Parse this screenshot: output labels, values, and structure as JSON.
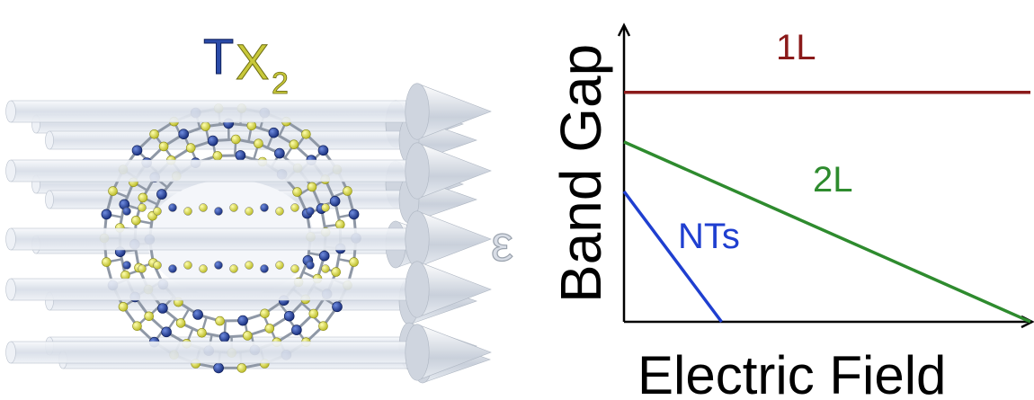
{
  "illustration": {
    "formula_main": "TX",
    "formula_sub": "2",
    "field_symbol": "ε",
    "colors": {
      "transition_metal": "#1f3b9a",
      "chalcogen": "#e3e34a",
      "bond": "#8f98a6",
      "arrow_shaft": "#dfe5ee",
      "formula_T": "#2a4aa8",
      "formula_X": "#c8c83a"
    }
  },
  "chart_data": {
    "type": "line",
    "xlabel": "Electric Field",
    "ylabel": "Band Gap",
    "xlim": [
      0,
      1
    ],
    "ylim": [
      0,
      1
    ],
    "grid": false,
    "series": [
      {
        "name": "1L",
        "color": "#8b1a1a",
        "x": [
          0,
          1
        ],
        "y": [
          0.88,
          0.88
        ]
      },
      {
        "name": "2L",
        "color": "#2e8b2e",
        "x": [
          0,
          1
        ],
        "y": [
          0.69,
          0.0
        ]
      },
      {
        "name": "NTs",
        "color": "#1f3fd0",
        "x": [
          0,
          0.24
        ],
        "y": [
          0.5,
          0.0
        ]
      }
    ]
  }
}
